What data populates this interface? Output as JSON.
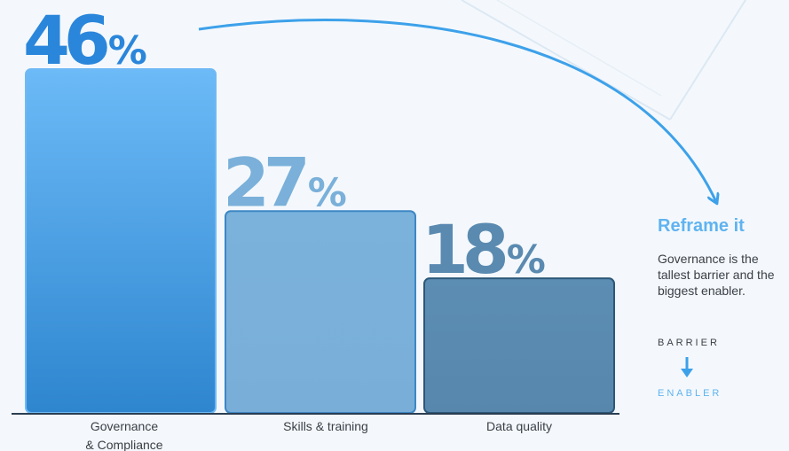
{
  "chart_data": {
    "type": "bar",
    "categories": [
      "Governance & Compliance",
      "Skills & training",
      "Data quality"
    ],
    "category_lines": [
      [
        "Governance",
        "& Compliance"
      ],
      [
        "Skills & training"
      ],
      [
        "Data quality"
      ]
    ],
    "values": [
      46,
      27,
      18
    ],
    "value_labels": [
      {
        "number": "46",
        "unit": "%"
      },
      {
        "number": "27",
        "unit": "%"
      },
      {
        "number": "18",
        "unit": "%"
      }
    ],
    "ylim": [
      0,
      46
    ],
    "grid": false,
    "colors": {
      "bars": [
        "#4a9de0",
        "#7ab0d9",
        "#5a8ab0"
      ],
      "bar_borders": [
        "#6fb9f5",
        "#3d87c4",
        "#2c5878"
      ],
      "label_colors": [
        "#2a86db",
        "#7ab0d9",
        "#5a8ab0"
      ],
      "baseline": "#2b3e52",
      "arrow": "#3da1ea"
    }
  },
  "annotation": {
    "title": "Reframe it",
    "body": "Governance is the tallest barrier and the biggest enabler.",
    "from": "BARRIER",
    "to": "ENABLER",
    "arrow_icon": "arrow-down"
  }
}
